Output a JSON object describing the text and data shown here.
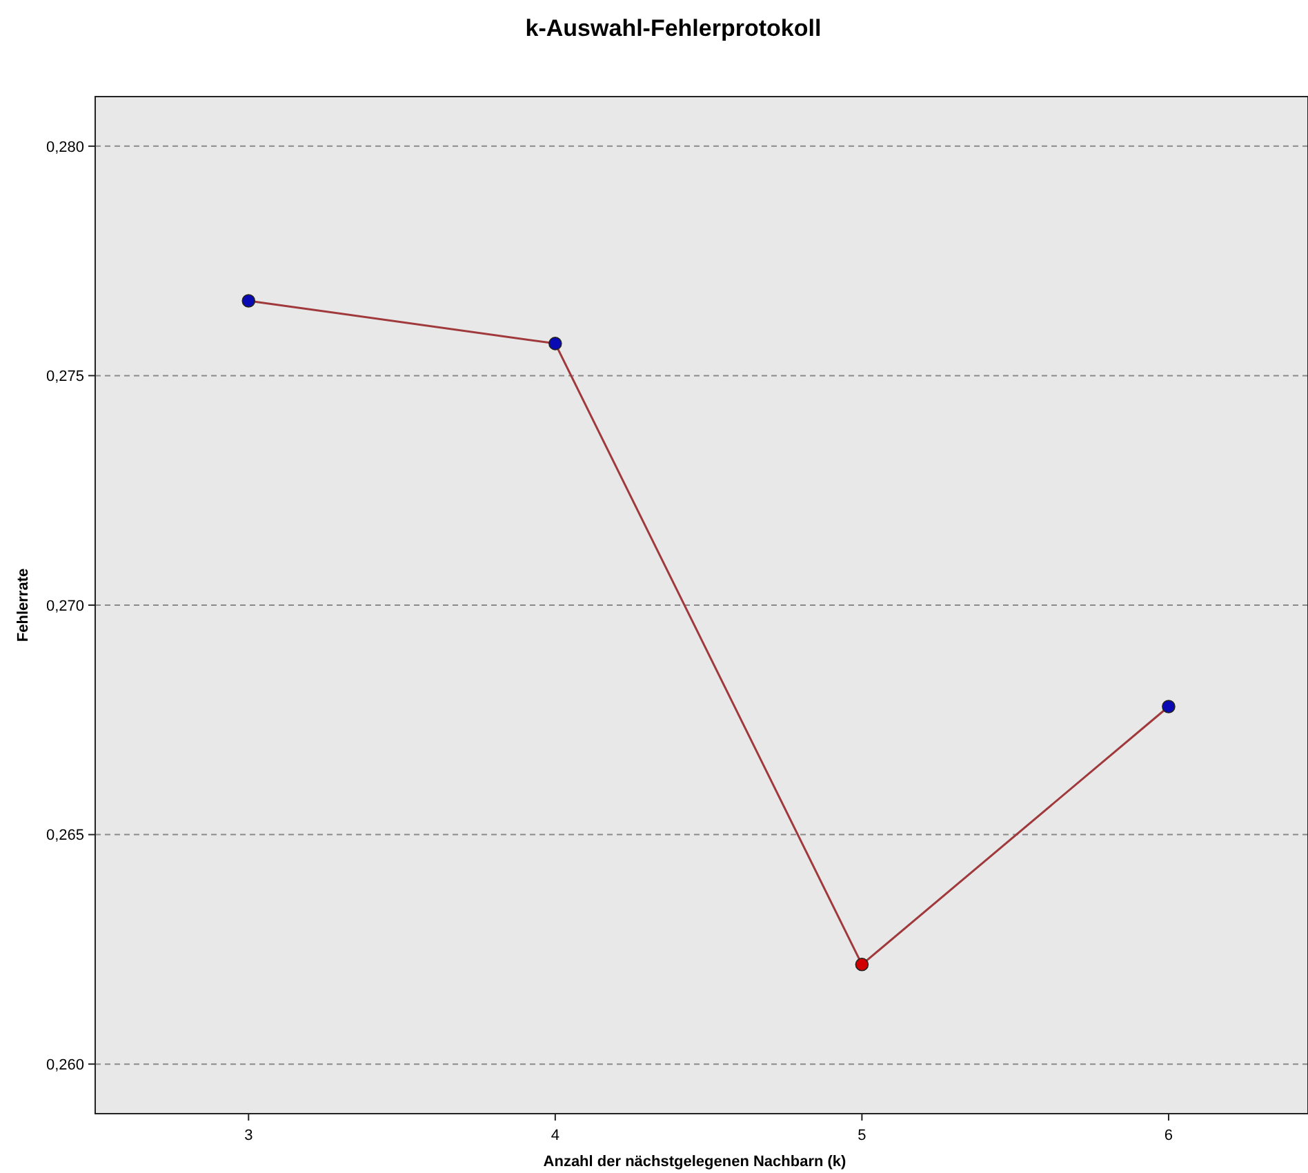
{
  "chart_data": {
    "type": "line",
    "title": "k-Auswahl-Fehlerprotokoll",
    "xlabel": "Anzahl der nächstgelegenen Nachbarn (k)",
    "ylabel": "Fehlerrate",
    "x": [
      3,
      4,
      5,
      6
    ],
    "series": [
      {
        "color": "#a0393c",
        "values": [
          0.27663,
          0.2757,
          0.26217,
          0.26779
        ],
        "marker": "none"
      },
      {
        "type": "scatter",
        "colors": [
          "#0a0ab4",
          "#0a0ab4",
          "#d00000",
          "#0a0ab4"
        ],
        "values": [
          0.27663,
          0.2757,
          0.26217,
          0.26779
        ],
        "marker": "circle"
      }
    ],
    "xlim": [
      2.5,
      6.45
    ],
    "xticks": [
      3,
      4,
      5,
      6
    ],
    "ylim": [
      0.25892,
      0.28108
    ],
    "yticks": [
      {
        "value": 0.26,
        "label": "0,260"
      },
      {
        "value": 0.265,
        "label": "0,265"
      },
      {
        "value": 0.27,
        "label": "0,270"
      },
      {
        "value": 0.275,
        "label": "0,275"
      },
      {
        "value": 0.28,
        "label": "0,280"
      }
    ],
    "grid": "y"
  }
}
